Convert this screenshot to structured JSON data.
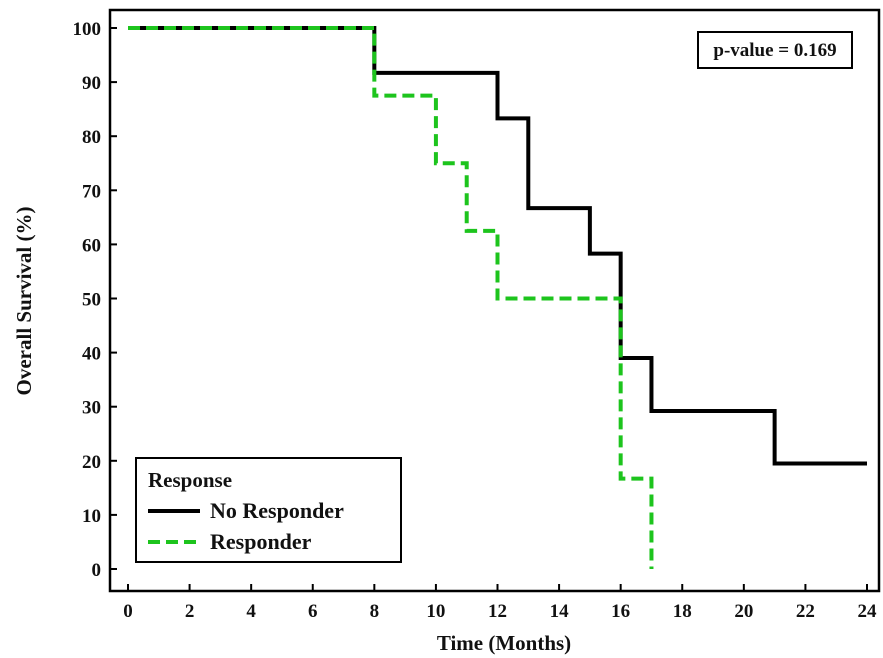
{
  "chart_data": {
    "type": "line",
    "step": true,
    "xlabel": "Time (Months)",
    "ylabel": "Overall Survival (%)",
    "xlim": [
      0,
      24
    ],
    "ylim": [
      0,
      100
    ],
    "xticks": [
      0,
      2,
      4,
      6,
      8,
      10,
      12,
      14,
      16,
      18,
      20,
      22,
      24
    ],
    "yticks": [
      0,
      10,
      20,
      30,
      40,
      50,
      60,
      70,
      80,
      90,
      100
    ],
    "grid": false,
    "legend": {
      "title": "Response",
      "placement": "bottom-left",
      "entries": [
        "No Responder",
        "Responder"
      ]
    },
    "annotation": "p-value = 0.169",
    "series": [
      {
        "name": "No Responder",
        "color": "#000000",
        "style": "solid",
        "x": [
          0,
          8,
          12,
          13,
          15,
          16,
          17,
          21,
          24
        ],
        "y": [
          100,
          91.7,
          83.3,
          66.7,
          58.3,
          39.0,
          29.2,
          19.5,
          19.5
        ]
      },
      {
        "name": "Responder",
        "color": "#1dc41d",
        "style": "dashed",
        "x": [
          0,
          8,
          10,
          11,
          12,
          16,
          17
        ],
        "y": [
          100,
          87.5,
          75.0,
          62.5,
          50.0,
          16.7,
          0
        ]
      }
    ]
  }
}
